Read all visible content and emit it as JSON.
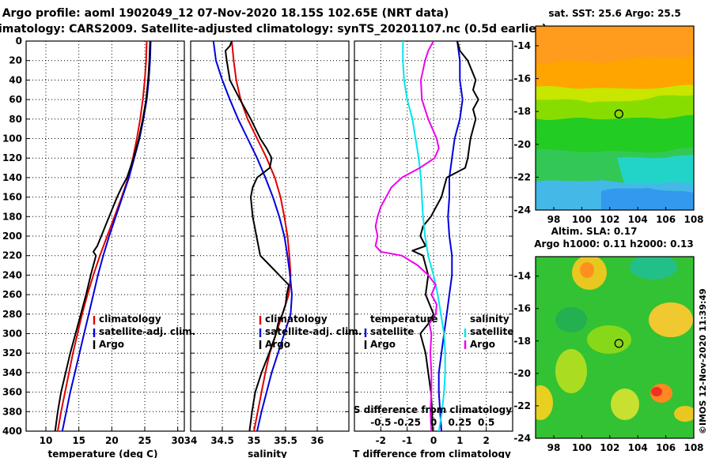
{
  "header": {
    "title_line1": "Argo profile: aoml 1902049_12 07-Nov-2020 18.15S 102.65E (NRT data)",
    "title_line2": "Climatology: CARS2009. Satellite-adjusted climatology: synTS_20201107.nc (0.5d earlier)"
  },
  "colors": {
    "climatology": "#e00000",
    "satellite": "#0000dd",
    "argo": "#000000",
    "salinity": "#ee00ee",
    "temperature_diff": "#00e5ee"
  },
  "depth_axis": {
    "ticks": [
      "0",
      "20",
      "40",
      "60",
      "80",
      "100",
      "120",
      "140",
      "160",
      "180",
      "200",
      "220",
      "240",
      "260",
      "280",
      "300",
      "320",
      "340",
      "360",
      "380",
      "400"
    ],
    "range": [
      0,
      400
    ]
  },
  "chart_data": [
    {
      "type": "line",
      "title": "temperature profile",
      "xlabel": "temperature (deg C)",
      "ylabel": "depth",
      "xlim": [
        7,
        31
      ],
      "ylim": [
        400,
        0
      ],
      "xticks": [
        "10",
        "15",
        "20",
        "25",
        "30"
      ],
      "legend": [
        "climatology",
        "satellite-adj. clim.",
        "Argo"
      ],
      "series": [
        {
          "name": "climatology",
          "key": "climatology",
          "depth": [
            0,
            20,
            40,
            60,
            80,
            100,
            120,
            140,
            160,
            180,
            200,
            220,
            240,
            260,
            280,
            300,
            320,
            340,
            360,
            380,
            400
          ],
          "values": [
            25.3,
            25.2,
            25.0,
            24.7,
            24.3,
            23.8,
            23.2,
            22.5,
            21.5,
            20.4,
            19.3,
            18.2,
            17.2,
            16.3,
            15.5,
            14.8,
            14.1,
            13.5,
            12.9,
            12.3,
            11.8
          ]
        },
        {
          "name": "satellite-adj. clim.",
          "key": "satellite",
          "depth": [
            0,
            20,
            40,
            60,
            80,
            100,
            120,
            140,
            160,
            180,
            200,
            220,
            240,
            260,
            280,
            300,
            320,
            340,
            360,
            380,
            400
          ],
          "values": [
            25.9,
            25.8,
            25.6,
            25.3,
            24.8,
            24.2,
            23.4,
            22.6,
            21.6,
            20.6,
            19.6,
            18.7,
            17.9,
            17.2,
            16.5,
            15.8,
            15.1,
            14.4,
            13.7,
            13.1,
            12.5
          ]
        },
        {
          "name": "Argo",
          "key": "argo",
          "depth": [
            0,
            20,
            40,
            60,
            80,
            100,
            120,
            140,
            150,
            160,
            180,
            200,
            210,
            216,
            220,
            240,
            260,
            280,
            300,
            320,
            340,
            360,
            380,
            400
          ],
          "values": [
            25.8,
            25.7,
            25.5,
            25.2,
            24.7,
            24.1,
            23.3,
            22.3,
            21.5,
            20.8,
            19.6,
            18.4,
            17.8,
            17.2,
            17.6,
            16.8,
            16.1,
            15.3,
            14.5,
            13.7,
            13.0,
            12.3,
            11.8,
            11.4
          ]
        }
      ]
    },
    {
      "type": "line",
      "title": "salinity profile",
      "xlabel": "salinity",
      "ylabel": "depth",
      "xlim": [
        34.0,
        36.5
      ],
      "ylim": [
        400,
        0
      ],
      "xticks": [
        "34",
        "34.5",
        "35",
        "35.5",
        "36"
      ],
      "legend": [
        "climatology",
        "satellite-adj. clim.",
        "Argo"
      ],
      "series": [
        {
          "name": "climatology",
          "key": "climatology",
          "depth": [
            0,
            20,
            40,
            60,
            80,
            100,
            120,
            140,
            160,
            180,
            200,
            220,
            240,
            260,
            280,
            300,
            320,
            340,
            360,
            380,
            400
          ],
          "values": [
            34.65,
            34.68,
            34.72,
            34.79,
            34.9,
            35.05,
            35.2,
            35.33,
            35.42,
            35.48,
            35.53,
            35.56,
            35.58,
            35.55,
            35.45,
            35.35,
            35.25,
            35.18,
            35.12,
            35.06,
            35.0
          ]
        },
        {
          "name": "satellite-adj. clim.",
          "key": "satellite",
          "depth": [
            0,
            10,
            20,
            40,
            60,
            80,
            100,
            120,
            140,
            160,
            180,
            200,
            220,
            240,
            260,
            280,
            300,
            320,
            340,
            360,
            380,
            400
          ],
          "values": [
            34.36,
            34.38,
            34.4,
            34.5,
            34.62,
            34.75,
            34.9,
            35.05,
            35.18,
            35.3,
            35.4,
            35.48,
            35.53,
            35.57,
            35.6,
            35.58,
            35.48,
            35.38,
            35.28,
            35.2,
            35.12,
            35.05
          ]
        },
        {
          "name": "Argo",
          "key": "argo",
          "depth": [
            0,
            5,
            10,
            20,
            40,
            60,
            80,
            100,
            110,
            120,
            130,
            140,
            150,
            160,
            180,
            200,
            220,
            230,
            240,
            250,
            260,
            270,
            280,
            290,
            300,
            320,
            340,
            360,
            380,
            400
          ],
          "values": [
            34.65,
            34.62,
            34.55,
            34.57,
            34.62,
            34.78,
            34.95,
            35.1,
            35.2,
            35.28,
            35.25,
            35.05,
            34.98,
            34.95,
            34.98,
            35.04,
            35.1,
            35.25,
            35.4,
            35.55,
            35.52,
            35.5,
            35.45,
            35.38,
            35.35,
            35.24,
            35.12,
            35.02,
            34.97,
            34.93
          ]
        }
      ]
    },
    {
      "type": "line",
      "title": "difference from climatology",
      "xlabel": "T difference from climatology",
      "ylabel": "depth",
      "xlim": [
        -3,
        3
      ],
      "ylim": [
        400,
        0
      ],
      "xticks": [
        "-2",
        "-1",
        "0",
        "1",
        "2"
      ],
      "secondary_axis": {
        "label": "S difference from climatology",
        "xlim": [
          -0.75,
          0.75
        ],
        "ticks": [
          "-0.5",
          "-0.25",
          "0",
          "0.25",
          "0.5"
        ]
      },
      "legend": {
        "temperature_title": "temperature",
        "salinity_title": "salinity",
        "temperature_items": [
          "satellite",
          "Argo"
        ],
        "salinity_items": [
          "satellite",
          "Argo"
        ]
      },
      "series": [
        {
          "name": "temperature satellite",
          "key": "satellite",
          "axis": "T",
          "depth": [
            0,
            20,
            40,
            60,
            80,
            100,
            120,
            140,
            160,
            180,
            200,
            220,
            240,
            260,
            280,
            300,
            320,
            340,
            360,
            380,
            400
          ],
          "values": [
            0.9,
            1.0,
            1.0,
            1.1,
            1.0,
            0.8,
            0.7,
            0.6,
            0.6,
            0.55,
            0.6,
            0.7,
            0.7,
            0.6,
            0.5,
            0.4,
            0.3,
            0.2,
            0.2,
            0.25,
            0.3
          ]
        },
        {
          "name": "temperature Argo",
          "key": "argo",
          "axis": "T",
          "depth": [
            0,
            10,
            20,
            40,
            50,
            60,
            70,
            80,
            100,
            120,
            130,
            140,
            150,
            160,
            170,
            180,
            190,
            200,
            210,
            215,
            220,
            240,
            260,
            280,
            290,
            300,
            320,
            340,
            360,
            380,
            400
          ],
          "values": [
            0.9,
            1.0,
            1.3,
            1.6,
            1.5,
            1.7,
            1.5,
            1.6,
            1.4,
            1.3,
            1.2,
            0.5,
            0.4,
            0.3,
            0.1,
            -0.1,
            -0.4,
            -0.5,
            -0.3,
            -0.8,
            -0.4,
            -0.2,
            -0.3,
            0.0,
            -0.2,
            -0.5,
            -0.3,
            -0.2,
            -0.1,
            -0.05,
            -0.05
          ]
        },
        {
          "name": "salinity satellite",
          "key": "temperature_diff",
          "axis": "S",
          "depth": [
            0,
            20,
            40,
            60,
            80,
            100,
            120,
            140,
            160,
            180,
            200,
            220,
            240,
            260,
            280,
            300,
            320,
            340,
            360,
            380,
            400
          ],
          "values": [
            -0.29,
            -0.29,
            -0.28,
            -0.25,
            -0.2,
            -0.17,
            -0.14,
            -0.12,
            -0.11,
            -0.1,
            -0.08,
            -0.05,
            0.0,
            0.04,
            0.07,
            0.1,
            0.11,
            0.11,
            0.1,
            0.08,
            0.05
          ]
        },
        {
          "name": "salinity Argo",
          "key": "salinity",
          "axis": "S",
          "depth": [
            0,
            10,
            20,
            40,
            60,
            80,
            100,
            110,
            120,
            130,
            140,
            150,
            160,
            170,
            180,
            190,
            200,
            210,
            216,
            220,
            230,
            240,
            250,
            260,
            270,
            280,
            290,
            300,
            320,
            340,
            360,
            380,
            400
          ],
          "values": [
            0.0,
            -0.05,
            -0.08,
            -0.12,
            -0.11,
            -0.05,
            0.03,
            0.05,
            0.01,
            -0.13,
            -0.3,
            -0.4,
            -0.45,
            -0.5,
            -0.53,
            -0.55,
            -0.53,
            -0.55,
            -0.5,
            -0.3,
            -0.15,
            -0.05,
            0.02,
            -0.02,
            0.03,
            0.02,
            -0.04,
            -0.02,
            -0.03,
            -0.02,
            -0.02,
            -0.03,
            -0.02
          ]
        }
      ]
    }
  ],
  "sst_panel": {
    "title": "sat. SST: 25.6 Argo: 25.5",
    "lat_ticks": [
      "-14",
      "-16",
      "-18",
      "-20",
      "-22",
      "-24"
    ],
    "lon_ticks": [
      "98",
      "100",
      "102",
      "104",
      "106",
      "108"
    ],
    "argo_position": {
      "lon": 102.65,
      "lat": -18.15
    }
  },
  "sla_panel": {
    "title_line1": "Altim. SLA: 0.17",
    "title_line2": "Argo h1000: 0.11 h2000: 0.13",
    "lat_ticks": [
      "-14",
      "-16",
      "-18",
      "-20",
      "-22",
      "-24"
    ],
    "lon_ticks": [
      "98",
      "100",
      "102",
      "104",
      "106",
      "108"
    ],
    "argo_position": {
      "lon": 102.65,
      "lat": -18.15
    }
  },
  "credit": "©IMOS 12-Nov-2020 11:39:49"
}
